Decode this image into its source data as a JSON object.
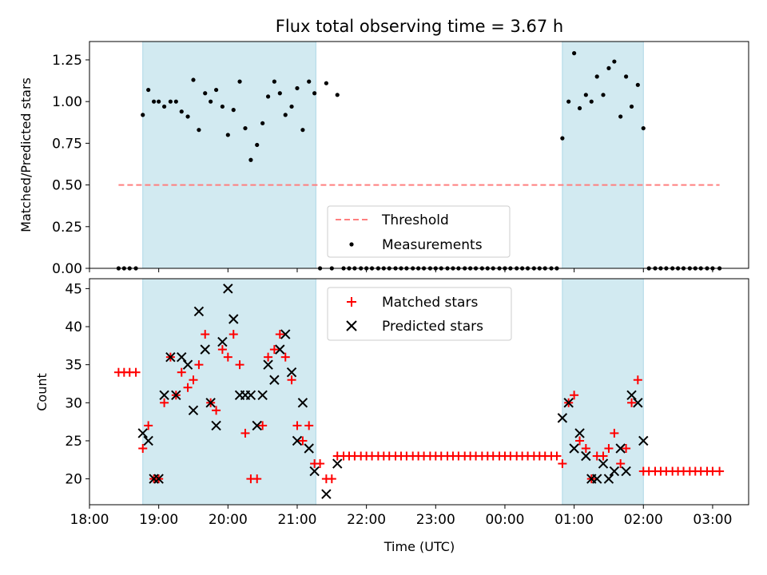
{
  "title": "Flux total observing time = 3.67 h",
  "colors": {
    "shade": "#add8e6",
    "threshold": "#ff7f7f",
    "matched": "#ff0000",
    "predicted": "#000000",
    "measurement": "#000000"
  },
  "chart_data": [
    {
      "type": "scatter",
      "panel": "top",
      "ylabel": "Matched/Predicted stars",
      "xlabel": "",
      "xlim": [
        18.0,
        27.52
      ],
      "ylim": [
        0.0,
        1.36
      ],
      "yticks": [
        "0.00",
        "0.25",
        "0.50",
        "0.75",
        "1.00",
        "1.25"
      ],
      "grid": false,
      "legend_placement": "lower center",
      "threshold": {
        "name": "Threshold",
        "value": 0.5,
        "x_range": [
          18.42,
          27.1
        ]
      },
      "shaded_intervals": [
        [
          18.77,
          21.27
        ],
        [
          24.83,
          26.0
        ]
      ],
      "series": [
        {
          "name": "Measurements",
          "points": [
            [
              18.42,
              0.0
            ],
            [
              18.5,
              0.0
            ],
            [
              18.58,
              0.0
            ],
            [
              18.67,
              0.0
            ],
            [
              18.77,
              0.92
            ],
            [
              18.85,
              1.07
            ],
            [
              18.93,
              1.0
            ],
            [
              19.0,
              1.0
            ],
            [
              19.08,
              0.97
            ],
            [
              19.17,
              1.0
            ],
            [
              19.25,
              1.0
            ],
            [
              19.33,
              0.94
            ],
            [
              19.42,
              0.91
            ],
            [
              19.5,
              1.13
            ],
            [
              19.58,
              0.83
            ],
            [
              19.67,
              1.05
            ],
            [
              19.75,
              1.0
            ],
            [
              19.83,
              1.07
            ],
            [
              19.92,
              0.97
            ],
            [
              20.0,
              0.8
            ],
            [
              20.08,
              0.95
            ],
            [
              20.17,
              1.12
            ],
            [
              20.25,
              0.84
            ],
            [
              20.33,
              0.65
            ],
            [
              20.42,
              0.74
            ],
            [
              20.5,
              0.87
            ],
            [
              20.58,
              1.03
            ],
            [
              20.67,
              1.12
            ],
            [
              20.75,
              1.05
            ],
            [
              20.83,
              0.92
            ],
            [
              20.92,
              0.97
            ],
            [
              21.0,
              1.08
            ],
            [
              21.08,
              0.83
            ],
            [
              21.17,
              1.12
            ],
            [
              21.25,
              1.05
            ],
            [
              21.33,
              0.0
            ],
            [
              21.42,
              1.11
            ],
            [
              21.5,
              0.0
            ],
            [
              21.58,
              1.04
            ],
            [
              21.67,
              0.0
            ],
            [
              21.75,
              0.0
            ],
            [
              21.83,
              0.0
            ],
            [
              21.92,
              0.0
            ],
            [
              22.0,
              0.0
            ],
            [
              22.08,
              0.0
            ],
            [
              22.17,
              0.0
            ],
            [
              22.25,
              0.0
            ],
            [
              22.33,
              0.0
            ],
            [
              22.42,
              0.0
            ],
            [
              22.5,
              0.0
            ],
            [
              22.58,
              0.0
            ],
            [
              22.67,
              0.0
            ],
            [
              22.75,
              0.0
            ],
            [
              22.83,
              0.0
            ],
            [
              22.92,
              0.0
            ],
            [
              23.0,
              0.0
            ],
            [
              23.08,
              0.0
            ],
            [
              23.17,
              0.0
            ],
            [
              23.25,
              0.0
            ],
            [
              23.33,
              0.0
            ],
            [
              23.42,
              0.0
            ],
            [
              23.5,
              0.0
            ],
            [
              23.58,
              0.0
            ],
            [
              23.67,
              0.0
            ],
            [
              23.75,
              0.0
            ],
            [
              23.83,
              0.0
            ],
            [
              23.92,
              0.0
            ],
            [
              24.0,
              0.0
            ],
            [
              24.08,
              0.0
            ],
            [
              24.17,
              0.0
            ],
            [
              24.25,
              0.0
            ],
            [
              24.33,
              0.0
            ],
            [
              24.42,
              0.0
            ],
            [
              24.5,
              0.0
            ],
            [
              24.58,
              0.0
            ],
            [
              24.67,
              0.0
            ],
            [
              24.75,
              0.0
            ],
            [
              24.83,
              0.78
            ],
            [
              24.92,
              1.0
            ],
            [
              25.0,
              1.29
            ],
            [
              25.08,
              0.96
            ],
            [
              25.17,
              1.04
            ],
            [
              25.25,
              1.0
            ],
            [
              25.33,
              1.15
            ],
            [
              25.42,
              1.04
            ],
            [
              25.5,
              1.2
            ],
            [
              25.58,
              1.24
            ],
            [
              25.67,
              0.91
            ],
            [
              25.75,
              1.15
            ],
            [
              25.83,
              0.97
            ],
            [
              25.92,
              1.1
            ],
            [
              26.0,
              0.84
            ],
            [
              26.08,
              0.0
            ],
            [
              26.17,
              0.0
            ],
            [
              26.25,
              0.0
            ],
            [
              26.33,
              0.0
            ],
            [
              26.42,
              0.0
            ],
            [
              26.5,
              0.0
            ],
            [
              26.58,
              0.0
            ],
            [
              26.67,
              0.0
            ],
            [
              26.75,
              0.0
            ],
            [
              26.83,
              0.0
            ],
            [
              26.92,
              0.0
            ],
            [
              27.0,
              0.0
            ],
            [
              27.1,
              0.0
            ]
          ]
        }
      ]
    },
    {
      "type": "scatter",
      "panel": "bottom",
      "ylabel": "Count",
      "xlabel": "Time (UTC)",
      "xlim": [
        18.0,
        27.52
      ],
      "ylim": [
        16.6,
        46.3
      ],
      "yticks": [
        "20",
        "25",
        "30",
        "35",
        "40",
        "45"
      ],
      "xticks": [
        {
          "value": 18,
          "label": "18:00"
        },
        {
          "value": 19,
          "label": "19:00"
        },
        {
          "value": 20,
          "label": "20:00"
        },
        {
          "value": 21,
          "label": "21:00"
        },
        {
          "value": 22,
          "label": "22:00"
        },
        {
          "value": 23,
          "label": "23:00"
        },
        {
          "value": 24,
          "label": "00:00"
        },
        {
          "value": 25,
          "label": "01:00"
        },
        {
          "value": 26,
          "label": "02:00"
        },
        {
          "value": 27,
          "label": "03:00"
        }
      ],
      "grid": false,
      "legend_placement": "upper center",
      "shaded_intervals": [
        [
          18.77,
          21.27
        ],
        [
          24.83,
          26.0
        ]
      ],
      "series": [
        {
          "name": "Matched stars",
          "points": [
            [
              18.42,
              34
            ],
            [
              18.5,
              34
            ],
            [
              18.58,
              34
            ],
            [
              18.67,
              34
            ],
            [
              18.77,
              24
            ],
            [
              18.85,
              27
            ],
            [
              18.93,
              20
            ],
            [
              19.0,
              20
            ],
            [
              19.08,
              30
            ],
            [
              19.17,
              36
            ],
            [
              19.25,
              31
            ],
            [
              19.33,
              34
            ],
            [
              19.42,
              32
            ],
            [
              19.5,
              33
            ],
            [
              19.58,
              35
            ],
            [
              19.67,
              39
            ],
            [
              19.75,
              30
            ],
            [
              19.83,
              29
            ],
            [
              19.92,
              37
            ],
            [
              20.0,
              36
            ],
            [
              20.08,
              39
            ],
            [
              20.17,
              35
            ],
            [
              20.25,
              26
            ],
            [
              20.33,
              20
            ],
            [
              20.42,
              20
            ],
            [
              20.5,
              27
            ],
            [
              20.58,
              36
            ],
            [
              20.67,
              37
            ],
            [
              20.75,
              39
            ],
            [
              20.83,
              36
            ],
            [
              20.92,
              33
            ],
            [
              21.0,
              27
            ],
            [
              21.08,
              25
            ],
            [
              21.17,
              27
            ],
            [
              21.25,
              22
            ],
            [
              21.33,
              22
            ],
            [
              21.42,
              20
            ],
            [
              21.5,
              20
            ],
            [
              21.58,
              23
            ],
            [
              21.67,
              23
            ],
            [
              21.75,
              23
            ],
            [
              21.83,
              23
            ],
            [
              21.92,
              23
            ],
            [
              22.0,
              23
            ],
            [
              22.08,
              23
            ],
            [
              22.17,
              23
            ],
            [
              22.25,
              23
            ],
            [
              22.33,
              23
            ],
            [
              22.42,
              23
            ],
            [
              22.5,
              23
            ],
            [
              22.58,
              23
            ],
            [
              22.67,
              23
            ],
            [
              22.75,
              23
            ],
            [
              22.83,
              23
            ],
            [
              22.92,
              23
            ],
            [
              23.0,
              23
            ],
            [
              23.08,
              23
            ],
            [
              23.17,
              23
            ],
            [
              23.25,
              23
            ],
            [
              23.33,
              23
            ],
            [
              23.42,
              23
            ],
            [
              23.5,
              23
            ],
            [
              23.58,
              23
            ],
            [
              23.67,
              23
            ],
            [
              23.75,
              23
            ],
            [
              23.83,
              23
            ],
            [
              23.92,
              23
            ],
            [
              24.0,
              23
            ],
            [
              24.08,
              23
            ],
            [
              24.17,
              23
            ],
            [
              24.25,
              23
            ],
            [
              24.33,
              23
            ],
            [
              24.42,
              23
            ],
            [
              24.5,
              23
            ],
            [
              24.58,
              23
            ],
            [
              24.67,
              23
            ],
            [
              24.75,
              23
            ],
            [
              24.83,
              22
            ],
            [
              24.92,
              30
            ],
            [
              25.0,
              31
            ],
            [
              25.08,
              25
            ],
            [
              25.17,
              24
            ],
            [
              25.25,
              20
            ],
            [
              25.33,
              23
            ],
            [
              25.42,
              23
            ],
            [
              25.5,
              24
            ],
            [
              25.58,
              26
            ],
            [
              25.67,
              22
            ],
            [
              25.75,
              24
            ],
            [
              25.83,
              30
            ],
            [
              25.92,
              33
            ],
            [
              26.0,
              21
            ],
            [
              26.08,
              21
            ],
            [
              26.17,
              21
            ],
            [
              26.25,
              21
            ],
            [
              26.33,
              21
            ],
            [
              26.42,
              21
            ],
            [
              26.5,
              21
            ],
            [
              26.58,
              21
            ],
            [
              26.67,
              21
            ],
            [
              26.75,
              21
            ],
            [
              26.83,
              21
            ],
            [
              26.92,
              21
            ],
            [
              27.0,
              21
            ],
            [
              27.1,
              21
            ]
          ]
        },
        {
          "name": "Predicted stars",
          "points": [
            [
              18.77,
              26
            ],
            [
              18.85,
              25
            ],
            [
              18.93,
              20
            ],
            [
              19.0,
              20
            ],
            [
              19.08,
              31
            ],
            [
              19.17,
              36
            ],
            [
              19.25,
              31
            ],
            [
              19.33,
              36
            ],
            [
              19.42,
              35
            ],
            [
              19.5,
              29
            ],
            [
              19.58,
              42
            ],
            [
              19.67,
              37
            ],
            [
              19.75,
              30
            ],
            [
              19.83,
              27
            ],
            [
              19.92,
              38
            ],
            [
              20.0,
              45
            ],
            [
              20.08,
              41
            ],
            [
              20.17,
              31
            ],
            [
              20.25,
              31
            ],
            [
              20.33,
              31
            ],
            [
              20.42,
              27
            ],
            [
              20.5,
              31
            ],
            [
              20.58,
              35
            ],
            [
              20.67,
              33
            ],
            [
              20.75,
              37
            ],
            [
              20.83,
              39
            ],
            [
              20.92,
              34
            ],
            [
              21.0,
              25
            ],
            [
              21.08,
              30
            ],
            [
              21.17,
              24
            ],
            [
              21.25,
              21
            ],
            [
              21.42,
              18
            ],
            [
              21.58,
              22
            ],
            [
              24.83,
              28
            ],
            [
              24.92,
              30
            ],
            [
              25.0,
              24
            ],
            [
              25.08,
              26
            ],
            [
              25.17,
              23
            ],
            [
              25.25,
              20
            ],
            [
              25.33,
              20
            ],
            [
              25.42,
              22
            ],
            [
              25.5,
              20
            ],
            [
              25.58,
              21
            ],
            [
              25.67,
              24
            ],
            [
              25.75,
              21
            ],
            [
              25.83,
              31
            ],
            [
              25.92,
              30
            ],
            [
              26.0,
              25
            ]
          ]
        }
      ]
    }
  ]
}
